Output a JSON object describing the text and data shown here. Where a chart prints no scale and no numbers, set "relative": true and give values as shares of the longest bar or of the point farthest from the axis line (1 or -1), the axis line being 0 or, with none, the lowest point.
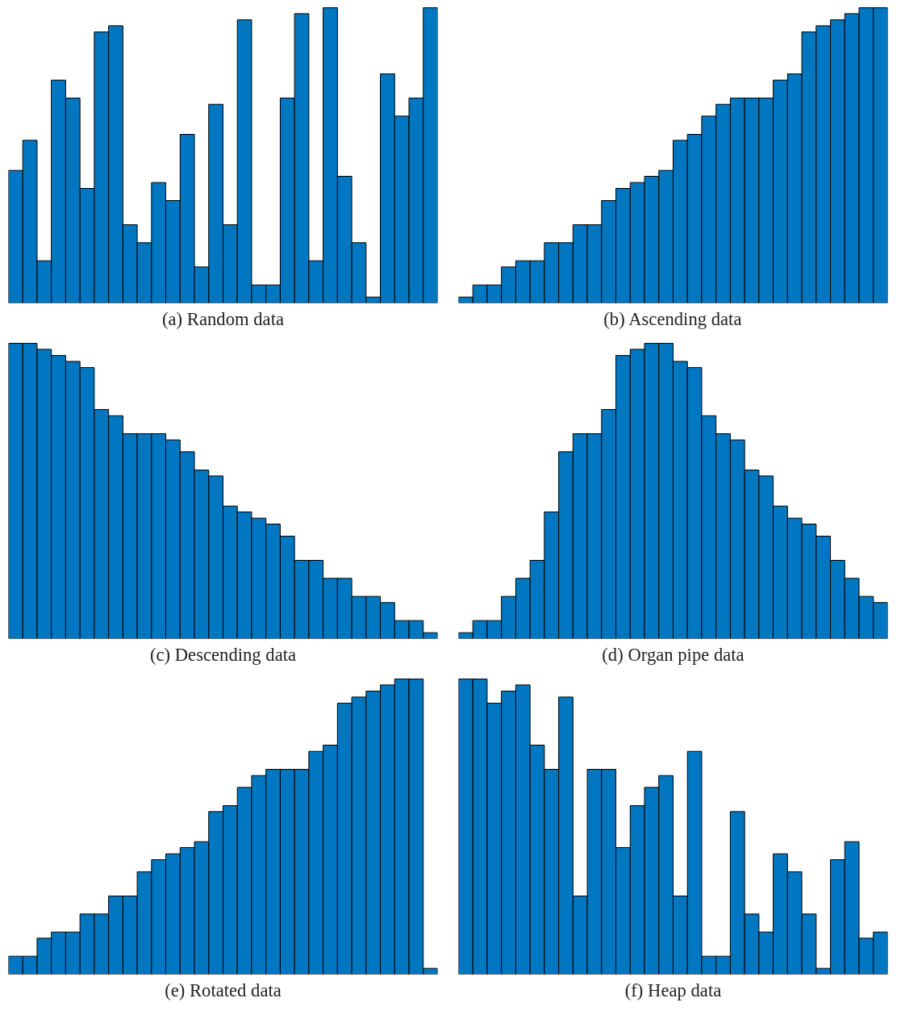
{
  "chart_data": [
    {
      "type": "bar",
      "title": "(a) Random data",
      "relative": true,
      "color": "#0077c0",
      "categories": [
        null,
        null,
        null,
        null,
        null,
        null,
        null,
        null,
        null,
        null,
        null,
        null,
        null,
        null,
        null,
        null,
        null,
        null,
        null,
        null,
        null,
        null,
        null,
        null,
        null,
        null,
        null,
        null,
        null,
        null
      ],
      "values": [
        0.449,
        0.551,
        0.143,
        0.755,
        0.694,
        0.388,
        0.918,
        0.939,
        0.265,
        0.204,
        0.408,
        0.347,
        0.571,
        0.122,
        0.673,
        0.265,
        0.959,
        0.061,
        0.061,
        0.694,
        0.98,
        0.143,
        1,
        0.429,
        0.204,
        0.02,
        0.776,
        0.633,
        0.694,
        1
      ]
    },
    {
      "type": "bar",
      "title": "(b) Ascending data",
      "relative": true,
      "color": "#0077c0",
      "categories": [
        null,
        null,
        null,
        null,
        null,
        null,
        null,
        null,
        null,
        null,
        null,
        null,
        null,
        null,
        null,
        null,
        null,
        null,
        null,
        null,
        null,
        null,
        null,
        null,
        null,
        null,
        null,
        null,
        null,
        null
      ],
      "values": [
        0.02,
        0.061,
        0.061,
        0.122,
        0.143,
        0.143,
        0.204,
        0.204,
        0.265,
        0.265,
        0.347,
        0.388,
        0.408,
        0.429,
        0.449,
        0.551,
        0.571,
        0.633,
        0.673,
        0.694,
        0.694,
        0.694,
        0.755,
        0.776,
        0.918,
        0.939,
        0.959,
        0.98,
        1,
        1
      ]
    },
    {
      "type": "bar",
      "title": "(c) Descending data",
      "relative": true,
      "color": "#0077c0",
      "categories": [
        null,
        null,
        null,
        null,
        null,
        null,
        null,
        null,
        null,
        null,
        null,
        null,
        null,
        null,
        null,
        null,
        null,
        null,
        null,
        null,
        null,
        null,
        null,
        null,
        null,
        null,
        null,
        null,
        null,
        null
      ],
      "values": [
        1,
        1,
        0.98,
        0.959,
        0.939,
        0.918,
        0.776,
        0.755,
        0.694,
        0.694,
        0.694,
        0.673,
        0.633,
        0.571,
        0.551,
        0.449,
        0.429,
        0.408,
        0.388,
        0.347,
        0.265,
        0.265,
        0.204,
        0.204,
        0.143,
        0.143,
        0.122,
        0.061,
        0.061,
        0.02
      ]
    },
    {
      "type": "bar",
      "title": "(d) Organ pipe data",
      "relative": true,
      "color": "#0077c0",
      "categories": [
        null,
        null,
        null,
        null,
        null,
        null,
        null,
        null,
        null,
        null,
        null,
        null,
        null,
        null,
        null,
        null,
        null,
        null,
        null,
        null,
        null,
        null,
        null,
        null,
        null,
        null,
        null,
        null,
        null,
        null
      ],
      "values": [
        0.02,
        0.061,
        0.061,
        0.143,
        0.204,
        0.265,
        0.429,
        0.633,
        0.694,
        0.694,
        0.776,
        0.959,
        0.98,
        1,
        1,
        0.939,
        0.918,
        0.755,
        0.694,
        0.673,
        0.571,
        0.551,
        0.449,
        0.408,
        0.388,
        0.347,
        0.265,
        0.204,
        0.143,
        0.122
      ]
    },
    {
      "type": "bar",
      "title": "(e) Rotated data",
      "relative": true,
      "color": "#0077c0",
      "categories": [
        null,
        null,
        null,
        null,
        null,
        null,
        null,
        null,
        null,
        null,
        null,
        null,
        null,
        null,
        null,
        null,
        null,
        null,
        null,
        null,
        null,
        null,
        null,
        null,
        null,
        null,
        null,
        null,
        null,
        null
      ],
      "values": [
        0.061,
        0.061,
        0.122,
        0.143,
        0.143,
        0.204,
        0.204,
        0.265,
        0.265,
        0.347,
        0.388,
        0.408,
        0.429,
        0.449,
        0.551,
        0.571,
        0.633,
        0.673,
        0.694,
        0.694,
        0.694,
        0.755,
        0.776,
        0.918,
        0.939,
        0.959,
        0.98,
        1,
        1,
        0.02
      ]
    },
    {
      "type": "bar",
      "title": "(f) Heap data",
      "relative": true,
      "color": "#0077c0",
      "categories": [
        null,
        null,
        null,
        null,
        null,
        null,
        null,
        null,
        null,
        null,
        null,
        null,
        null,
        null,
        null,
        null,
        null,
        null,
        null,
        null,
        null,
        null,
        null,
        null,
        null,
        null,
        null,
        null,
        null,
        null
      ],
      "values": [
        1,
        1,
        0.918,
        0.959,
        0.98,
        0.776,
        0.694,
        0.939,
        0.265,
        0.694,
        0.694,
        0.429,
        0.571,
        0.633,
        0.673,
        0.265,
        0.755,
        0.061,
        0.061,
        0.551,
        0.204,
        0.143,
        0.408,
        0.347,
        0.204,
        0.02,
        0.388,
        0.449,
        0.122,
        0.143
      ]
    }
  ]
}
